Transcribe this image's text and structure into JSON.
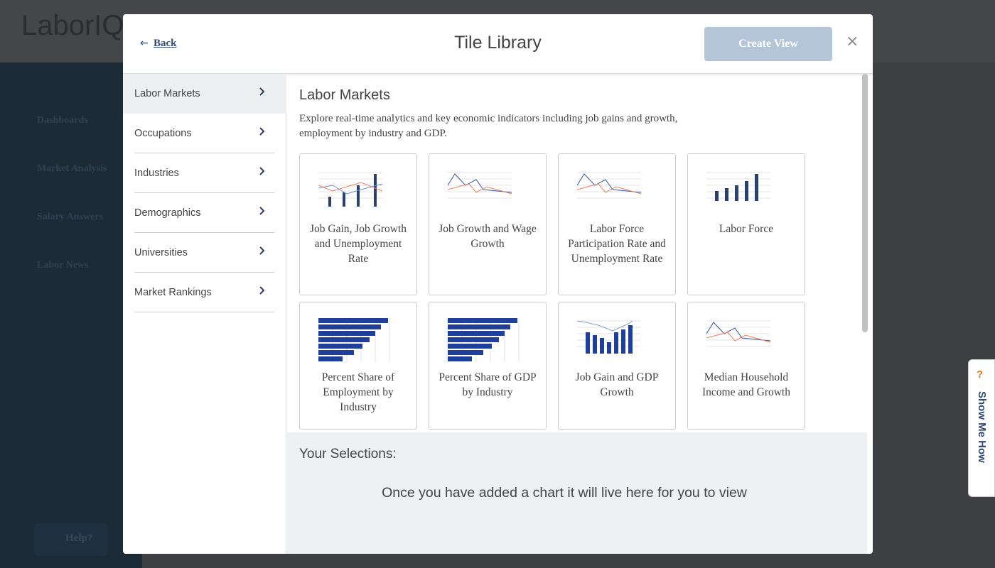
{
  "app": {
    "logo": "LaborIQ",
    "nav": [
      "Dashboards",
      "Market Analysis",
      "Salary Answers",
      "Labor News"
    ],
    "help": "Help?",
    "show_me_how": "Show Me How"
  },
  "modal": {
    "back": "Back",
    "title": "Tile Library",
    "create_button": "Create View",
    "close": "×",
    "categories": [
      "Labor Markets",
      "Occupations",
      "Industries",
      "Demographics",
      "Universities",
      "Market Rankings"
    ],
    "section": {
      "heading": "Labor Markets",
      "description": "Explore real-time analytics and key economic indicators including job gains and growth, employment by industry and GDP.",
      "tiles": [
        "Job Gain, Job Growth and Unemployment Rate",
        "Job Growth and Wage Growth",
        "Labor Force Participation Rate and Unemployment Rate",
        "Labor Force",
        "Percent Share of Employment by Industry",
        "Percent Share of GDP by Industry",
        "Job Gain and GDP Growth",
        "Median Household Income and Growth"
      ]
    },
    "selections": {
      "heading": "Your Selections:",
      "empty": "Once you have added a chart it will live here for you to view"
    }
  }
}
